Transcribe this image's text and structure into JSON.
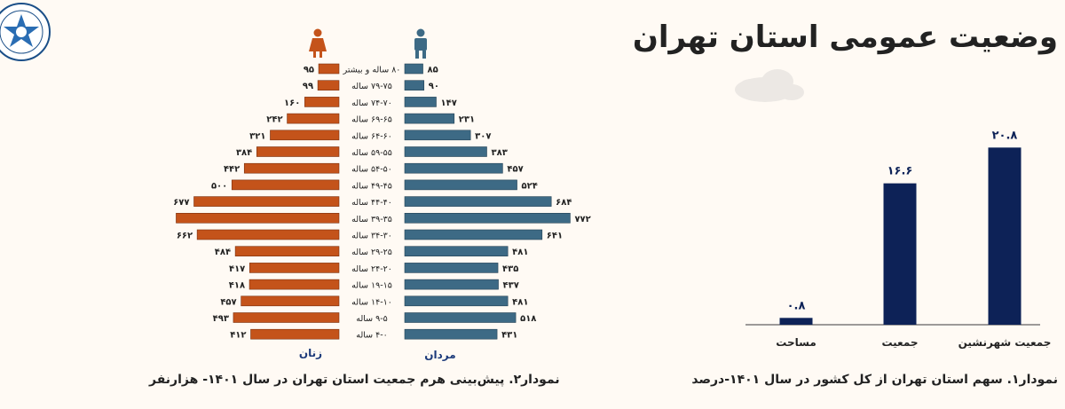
{
  "page": {
    "title": "وضعیت عمومی استان تهران"
  },
  "colors": {
    "women": "#c4531a",
    "men": "#3d6a85",
    "share_bars": "#0d2257",
    "cloud": "#ece8e4",
    "background": "#fffaf4"
  },
  "icons": {
    "women": "female-person-icon",
    "men": "male-person-icon",
    "logo": "institution-logo-icon"
  },
  "chart_data": [
    {
      "type": "bar",
      "orientation": "horizontal-pyramid",
      "caption": "نمودار۲. پیش‌بینی هرم جمعیت استان تهران در سال ۱۴۰۱- هزارنفر",
      "categories": [
        "۸۰ ساله و بیشتر",
        "۷۹-۷۵ ساله",
        "۷۴-۷۰ ساله",
        "۶۹-۶۵ ساله",
        "۶۴-۶۰ ساله",
        "۵۹-۵۵ ساله",
        "۵۴-۵۰ ساله",
        "۴۹-۴۵ ساله",
        "۴۴-۴۰ ساله",
        "۳۹-۳۵ ساله",
        "۳۴-۳۰ ساله",
        "۲۹-۲۵ ساله",
        "۲۴-۲۰ ساله",
        "۱۹-۱۵ ساله",
        "۱۴-۱۰ ساله",
        "۹-۵ ساله",
        "۴-۰ ساله"
      ],
      "series": [
        {
          "name": "زنان",
          "values": [
            95,
            99,
            160,
            242,
            321,
            384,
            442,
            500,
            677,
            760,
            662,
            484,
            417,
            418,
            457,
            493,
            412
          ],
          "labels": [
            "۹۵",
            "۹۹",
            "۱۶۰",
            "۲۴۲",
            "۳۲۱",
            "۳۸۴",
            "۴۴۲",
            "۵۰۰",
            "۶۷۷",
            "",
            "۶۶۲",
            "۴۸۴",
            "۴۱۷",
            "۴۱۸",
            "۴۵۷",
            "۴۹۳",
            "۴۱۲"
          ]
        },
        {
          "name": "مردان",
          "values": [
            85,
            90,
            147,
            231,
            307,
            383,
            457,
            524,
            684,
            772,
            641,
            481,
            435,
            437,
            481,
            518,
            431
          ],
          "labels": [
            "۸۵",
            "۹۰",
            "۱۴۷",
            "۲۳۱",
            "۳۰۷",
            "۳۸۳",
            "۴۵۷",
            "۵۲۴",
            "۶۸۴",
            "۷۷۲",
            "۶۴۱",
            "۴۸۱",
            "۴۳۵",
            "۴۳۷",
            "۴۸۱",
            "۵۱۸",
            "۴۳۱"
          ]
        }
      ]
    },
    {
      "type": "bar",
      "caption": "نمودار۱. سهم استان تهران از کل کشور در سال ۱۴۰۱-درصد",
      "categories": [
        "جمعیت شهرنشین",
        "جمعیت",
        "مساحت"
      ],
      "values": [
        20.8,
        16.6,
        0.8
      ],
      "value_labels": [
        "۲۰.۸",
        "۱۶.۶",
        "۰.۸"
      ]
    }
  ]
}
